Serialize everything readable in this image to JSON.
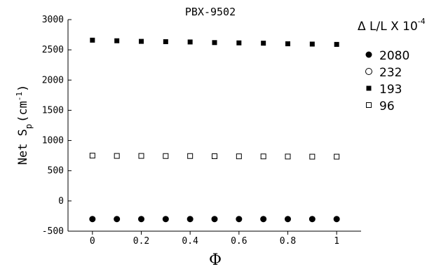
{
  "chart_data": {
    "type": "scatter",
    "title": "PBX-9502",
    "xlabel": "Φ",
    "ylabel_main": "Net S",
    "ylabel_sub": "p",
    "ylabel_unit": "(cm",
    "ylabel_unit_exp": "-1",
    "ylabel_unit_close": ")",
    "xlim": [
      -0.1,
      1.1
    ],
    "ylim": [
      -500,
      3000
    ],
    "x_ticks": [
      "0",
      "0.2",
      "0.4",
      "0.6",
      "0.8",
      "1"
    ],
    "y_ticks": [
      "-500",
      "0",
      "500",
      "1000",
      "1500",
      "2000",
      "2500",
      "3000"
    ],
    "legend_title_main": "Δ L/L X 10",
    "legend_title_exp": "-4",
    "legend_position": "right",
    "series": [
      {
        "name": "2080",
        "marker": "filled-circle",
        "x": [
          0,
          0.1,
          0.2,
          0.3,
          0.4,
          0.5,
          0.6,
          0.7,
          0.8,
          0.9,
          1.0
        ],
        "y": [
          -300,
          -300,
          -300,
          -300,
          -300,
          -300,
          -300,
          -300,
          -300,
          -300,
          -300
        ]
      },
      {
        "name": "232",
        "marker": "open-circle",
        "x": [],
        "y": []
      },
      {
        "name": "193",
        "marker": "filled-square",
        "x": [
          0,
          0.1,
          0.2,
          0.3,
          0.4,
          0.5,
          0.6,
          0.7,
          0.8,
          0.9,
          1.0
        ],
        "y": [
          2660,
          2650,
          2640,
          2635,
          2630,
          2620,
          2615,
          2610,
          2600,
          2595,
          2590
        ]
      },
      {
        "name": "96",
        "marker": "open-square",
        "x": [
          0,
          0.1,
          0.2,
          0.3,
          0.4,
          0.5,
          0.6,
          0.7,
          0.8,
          0.9,
          1.0
        ],
        "y": [
          750,
          745,
          745,
          743,
          743,
          740,
          738,
          737,
          735,
          733,
          733
        ]
      }
    ]
  }
}
